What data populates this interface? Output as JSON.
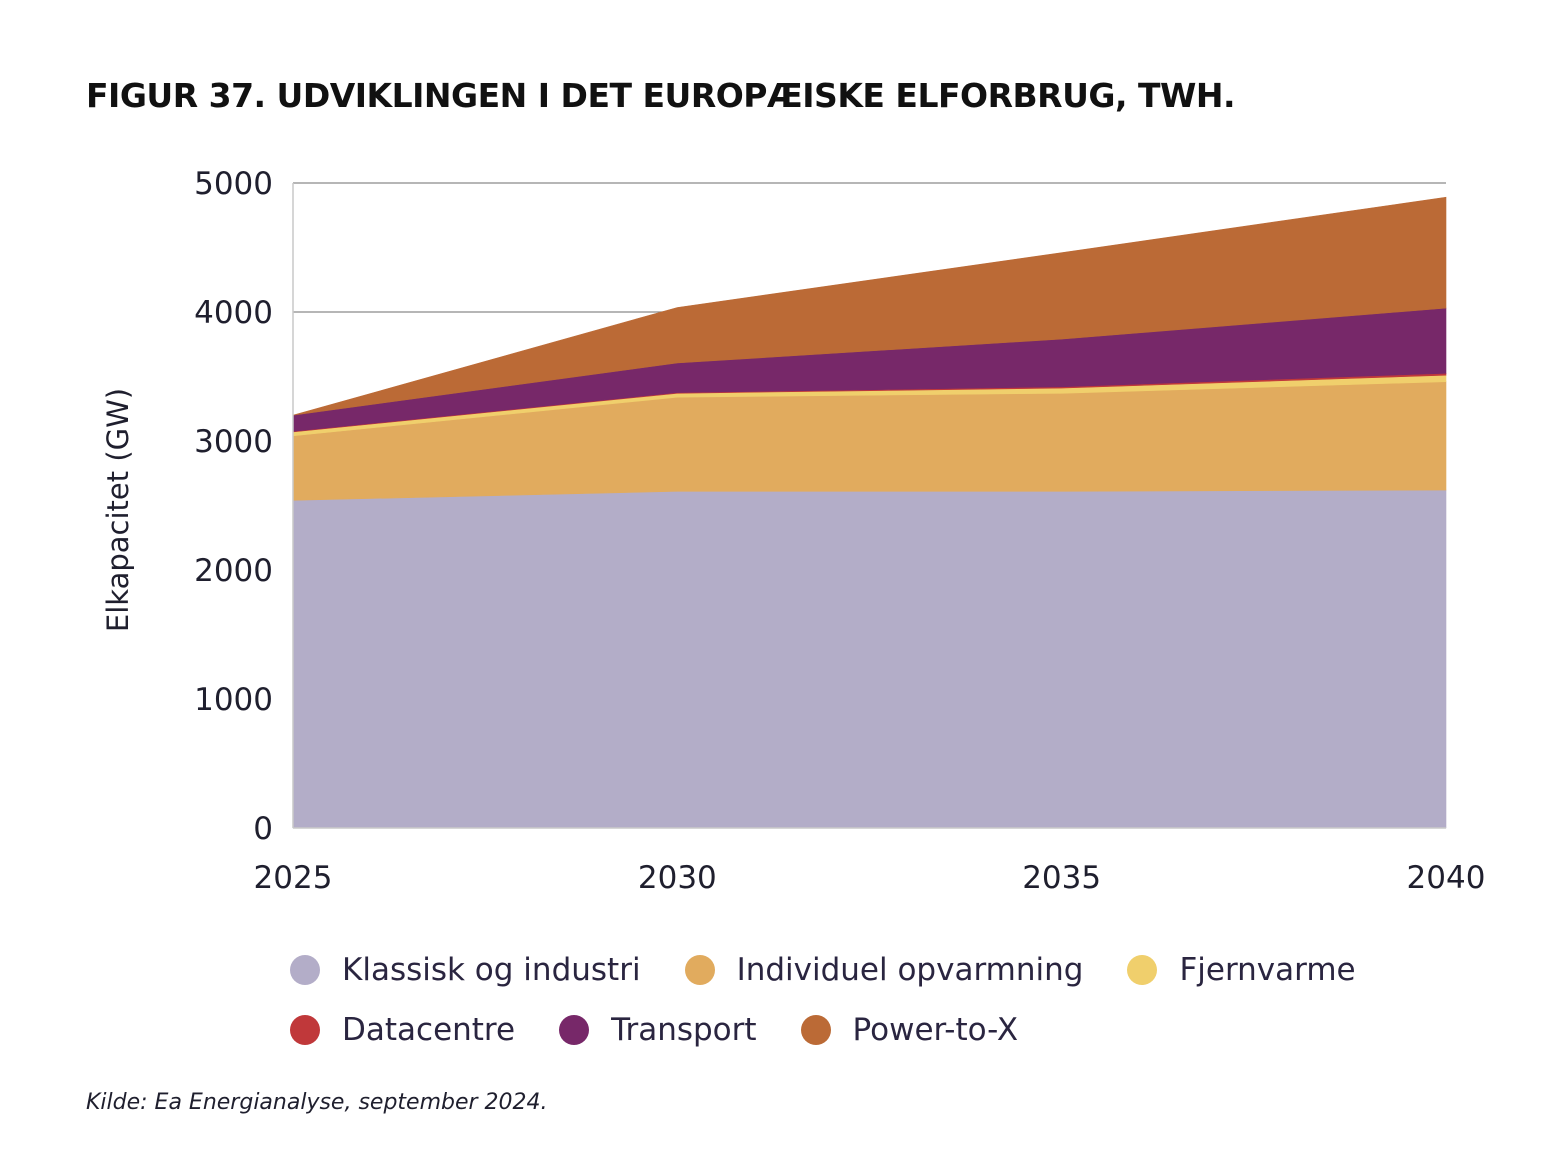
{
  "title": "FIGUR 37. UDVIKLINGEN I DET EUROPÆISKE ELFORBRUG, TWH.",
  "source": "Kilde: Ea Energianalyse, september 2024.",
  "chart_data": {
    "type": "area",
    "stacked": true,
    "ylabel": "Elkapacitet (GW)",
    "xlabel": "",
    "x": [
      2025,
      2030,
      2035,
      2040
    ],
    "x_tick_labels": [
      "2025",
      "2030",
      "2035",
      "2040"
    ],
    "ylim": [
      0,
      5000
    ],
    "y_ticks": [
      0,
      1000,
      2000,
      3000,
      4000,
      5000
    ],
    "y_tick_labels": [
      "0",
      "1000",
      "2000",
      "3000",
      "4000",
      "5000"
    ],
    "gridlines": [
      4000,
      5000
    ],
    "legend_position": "bottom",
    "series": [
      {
        "name": "Klassisk og industri",
        "color": "#b3adc8",
        "values": [
          2540,
          2610,
          2610,
          2620
        ]
      },
      {
        "name": "Individuel opvarmning",
        "color": "#e1ab5e",
        "values": [
          500,
          730,
          760,
          840
        ]
      },
      {
        "name": "Fjernvarme",
        "color": "#f0cf6c",
        "values": [
          30,
          30,
          40,
          50
        ]
      },
      {
        "name": "Datacentre",
        "color": "#c0383a",
        "values": [
          5,
          5,
          10,
          15
        ]
      },
      {
        "name": "Transport",
        "color": "#772869",
        "values": [
          125,
          230,
          370,
          505
        ]
      },
      {
        "name": "Power-to-X",
        "color": "#bb6a36",
        "values": [
          0,
          430,
          670,
          860
        ]
      }
    ]
  }
}
